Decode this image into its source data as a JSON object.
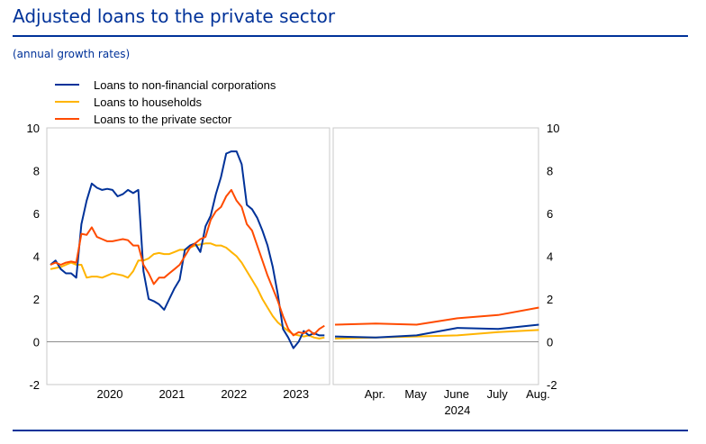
{
  "header": {
    "title": "Adjusted loans to the private sector",
    "subtitle": "(annual growth rates)"
  },
  "chart_data": {
    "type": "line",
    "ylim": [
      -2,
      10
    ],
    "y_ticks": [
      -2,
      0,
      2,
      4,
      6,
      8,
      10
    ],
    "grid": false,
    "legend_position": "top-left",
    "legend": [
      "Loans to non-financial corporations",
      "Loans to households",
      "Loans to the private sector"
    ],
    "colors": {
      "Loans to non-financial corporations": "#003299",
      "Loans to households": "#FFB400",
      "Loans to the private sector": "#FF4B00"
    },
    "panels": [
      {
        "name": "monthly",
        "x_ticks": [
          "2020",
          "2021",
          "2022",
          "2023"
        ],
        "x_range": [
          "2019-07",
          "2024-01"
        ],
        "series": [
          {
            "name": "Loans to non-financial corporations",
            "x": [
              "2019-07",
              "2019-08",
              "2019-09",
              "2019-10",
              "2019-11",
              "2019-12",
              "2020-01",
              "2020-02",
              "2020-03",
              "2020-04",
              "2020-05",
              "2020-06",
              "2020-07",
              "2020-08",
              "2020-09",
              "2020-10",
              "2020-11",
              "2020-12",
              "2021-01",
              "2021-02",
              "2021-03",
              "2021-04",
              "2021-05",
              "2021-06",
              "2021-07",
              "2021-08",
              "2021-09",
              "2021-10",
              "2021-11",
              "2021-12",
              "2022-01",
              "2022-02",
              "2022-03",
              "2022-04",
              "2022-05",
              "2022-06",
              "2022-07",
              "2022-08",
              "2022-09",
              "2022-10",
              "2022-11",
              "2022-12",
              "2023-01",
              "2023-02",
              "2023-03",
              "2023-04",
              "2023-05",
              "2023-06",
              "2023-07",
              "2023-08",
              "2023-09",
              "2023-10",
              "2023-11",
              "2023-12"
            ],
            "values": [
              3.6,
              3.8,
              3.4,
              3.2,
              3.2,
              3.0,
              5.5,
              6.6,
              7.4,
              7.2,
              7.1,
              7.15,
              7.1,
              6.8,
              6.9,
              7.1,
              6.95,
              7.1,
              3.3,
              2.0,
              1.9,
              1.75,
              1.5,
              2.0,
              2.5,
              2.9,
              4.3,
              4.5,
              4.6,
              4.2,
              5.4,
              5.9,
              6.9,
              7.7,
              8.8,
              8.9,
              8.9,
              8.3,
              6.4,
              6.2,
              5.8,
              5.2,
              4.5,
              3.5,
              2.2,
              0.6,
              0.2,
              -0.3,
              0.0,
              0.5,
              0.3,
              0.4,
              0.3,
              0.3
            ]
          },
          {
            "name": "Loans to households",
            "x": [
              "2019-07",
              "2019-08",
              "2019-09",
              "2019-10",
              "2019-11",
              "2019-12",
              "2020-01",
              "2020-02",
              "2020-03",
              "2020-04",
              "2020-05",
              "2020-06",
              "2020-07",
              "2020-08",
              "2020-09",
              "2020-10",
              "2020-11",
              "2020-12",
              "2021-01",
              "2021-02",
              "2021-03",
              "2021-04",
              "2021-05",
              "2021-06",
              "2021-07",
              "2021-08",
              "2021-09",
              "2021-10",
              "2021-11",
              "2021-12",
              "2022-01",
              "2022-02",
              "2022-03",
              "2022-04",
              "2022-05",
              "2022-06",
              "2022-07",
              "2022-08",
              "2022-09",
              "2022-10",
              "2022-11",
              "2022-12",
              "2023-01",
              "2023-02",
              "2023-03",
              "2023-04",
              "2023-05",
              "2023-06",
              "2023-07",
              "2023-08",
              "2023-09",
              "2023-10",
              "2023-11",
              "2023-12"
            ],
            "values": [
              3.4,
              3.45,
              3.5,
              3.6,
              3.7,
              3.6,
              3.6,
              3.0,
              3.05,
              3.05,
              3.0,
              3.1,
              3.2,
              3.15,
              3.1,
              3.0,
              3.3,
              3.8,
              3.8,
              3.9,
              4.1,
              4.15,
              4.1,
              4.1,
              4.2,
              4.3,
              4.3,
              4.4,
              4.5,
              4.55,
              4.6,
              4.6,
              4.5,
              4.5,
              4.4,
              4.2,
              4.0,
              3.7,
              3.3,
              2.9,
              2.5,
              2.0,
              1.6,
              1.2,
              0.9,
              0.7,
              0.5,
              0.35,
              0.3,
              0.25,
              0.3,
              0.2,
              0.15,
              0.2
            ]
          },
          {
            "name": "Loans to the private sector",
            "x": [
              "2019-07",
              "2019-08",
              "2019-09",
              "2019-10",
              "2019-11",
              "2019-12",
              "2020-01",
              "2020-02",
              "2020-03",
              "2020-04",
              "2020-05",
              "2020-06",
              "2020-07",
              "2020-08",
              "2020-09",
              "2020-10",
              "2020-11",
              "2020-12",
              "2021-01",
              "2021-02",
              "2021-03",
              "2021-04",
              "2021-05",
              "2021-06",
              "2021-07",
              "2021-08",
              "2021-09",
              "2021-10",
              "2021-11",
              "2021-12",
              "2022-01",
              "2022-02",
              "2022-03",
              "2022-04",
              "2022-05",
              "2022-06",
              "2022-07",
              "2022-08",
              "2022-09",
              "2022-10",
              "2022-11",
              "2022-12",
              "2023-01",
              "2023-02",
              "2023-03",
              "2023-04",
              "2023-05",
              "2023-06",
              "2023-07",
              "2023-08",
              "2023-09",
              "2023-10",
              "2023-11",
              "2023-12"
            ],
            "values": [
              3.6,
              3.7,
              3.6,
              3.7,
              3.75,
              3.7,
              5.05,
              5.0,
              5.35,
              4.9,
              4.8,
              4.7,
              4.7,
              4.75,
              4.8,
              4.75,
              4.5,
              4.5,
              3.6,
              3.2,
              2.7,
              3.0,
              3.0,
              3.2,
              3.4,
              3.6,
              4.0,
              4.4,
              4.6,
              4.8,
              4.9,
              5.7,
              6.1,
              6.3,
              6.8,
              7.1,
              6.6,
              6.3,
              5.5,
              5.2,
              4.5,
              3.8,
              3.1,
              2.5,
              1.9,
              1.2,
              0.6,
              0.3,
              0.45,
              0.4,
              0.55,
              0.35,
              0.6,
              0.75
            ]
          }
        ]
      },
      {
        "name": "2024",
        "x_ticks": [
          "Apr.",
          "May",
          "June",
          "July",
          "Aug."
        ],
        "x_label": "2024",
        "series": [
          {
            "name": "Loans to non-financial corporations",
            "x": [
              "Mar.",
              "Apr.",
              "May",
              "June",
              "July",
              "Aug."
            ],
            "values": [
              0.25,
              0.2,
              0.3,
              0.65,
              0.6,
              0.8
            ]
          },
          {
            "name": "Loans to households",
            "x": [
              "Mar.",
              "Apr.",
              "May",
              "June",
              "July",
              "Aug."
            ],
            "values": [
              0.15,
              0.2,
              0.25,
              0.3,
              0.45,
              0.55
            ]
          },
          {
            "name": "Loans to the private sector",
            "x": [
              "Mar.",
              "Apr.",
              "May",
              "June",
              "July",
              "Aug."
            ],
            "values": [
              0.8,
              0.85,
              0.8,
              1.1,
              1.25,
              1.6
            ]
          }
        ]
      }
    ]
  }
}
